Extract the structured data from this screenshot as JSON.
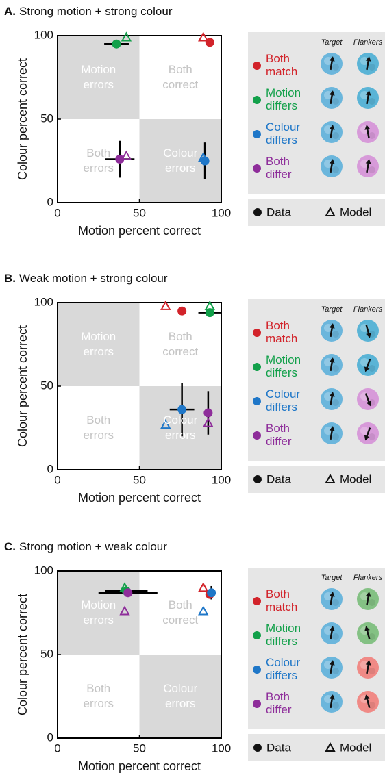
{
  "chart_data": [
    {
      "type": "scatter",
      "label": "A.",
      "title": "Strong motion + strong colour",
      "x_label": "Motion percent correct",
      "y_label": "Colour percent correct",
      "xlim": [
        0,
        100
      ],
      "ylim": [
        0,
        100
      ],
      "xticks": [
        0,
        50,
        100
      ],
      "yticks": [
        0,
        50,
        100
      ],
      "annotations": [
        "Motion errors",
        "Both correct",
        "Both errors",
        "Colour errors"
      ],
      "legend_headers": [
        "Target",
        "Flankers"
      ],
      "marker_legend": [
        "Data",
        "Model"
      ],
      "series": [
        {
          "name": "Both match",
          "color": "#d2232a",
          "x": 93,
          "y": 96,
          "x_err": null,
          "y_err": null,
          "model_x": 89,
          "model_y": 99
        },
        {
          "name": "Motion differs",
          "color": "#12a04a",
          "x": 36,
          "y": 95,
          "x_err": 7.5,
          "y_err": null,
          "model_x": 42,
          "model_y": 99
        },
        {
          "name": "Colour differs",
          "color": "#1f77c8",
          "x": 90,
          "y": 25,
          "x_err": null,
          "y_err": 11,
          "model_x": 89,
          "model_y": 27
        },
        {
          "name": "Both differ",
          "color": "#8e2d9a",
          "x": 38,
          "y": 26,
          "x_err": 9,
          "y_err": 11,
          "model_x": 42,
          "model_y": 28
        }
      ]
    },
    {
      "type": "scatter",
      "label": "B.",
      "title": "Weak motion + strong colour",
      "x_label": "Motion percent correct",
      "y_label": "Colour percent correct",
      "xlim": [
        0,
        100
      ],
      "ylim": [
        0,
        100
      ],
      "xticks": [
        0,
        50,
        100
      ],
      "yticks": [
        0,
        50,
        100
      ],
      "annotations": [
        "Motion errors",
        "Both correct",
        "Both errors",
        "Colour errors"
      ],
      "legend_headers": [
        "Target",
        "Flankers"
      ],
      "marker_legend": [
        "Data",
        "Model"
      ],
      "series": [
        {
          "name": "Both match",
          "color": "#d2232a",
          "x": 76,
          "y": 95,
          "x_err": null,
          "y_err": null,
          "model_x": 66,
          "model_y": 98
        },
        {
          "name": "Motion differs",
          "color": "#12a04a",
          "x": 93,
          "y": 94,
          "x_err": 7,
          "y_err": null,
          "model_x": 93,
          "model_y": 98
        },
        {
          "name": "Colour differs",
          "color": "#1f77c8",
          "x": 76,
          "y": 36,
          "x_err": 7.5,
          "y_err": 16,
          "model_x": 66,
          "model_y": 27
        },
        {
          "name": "Both differ",
          "color": "#8e2d9a",
          "x": 92,
          "y": 34,
          "x_err": null,
          "y_err": 13,
          "model_x": 92,
          "model_y": 28
        }
      ]
    },
    {
      "type": "scatter",
      "label": "C.",
      "title": "Strong motion + weak colour",
      "x_label": "Motion percent correct",
      "y_label": "Colour percent correct",
      "xlim": [
        0,
        100
      ],
      "ylim": [
        0,
        100
      ],
      "xticks": [
        0,
        50,
        100
      ],
      "yticks": [
        0,
        50,
        100
      ],
      "annotations": [
        "Motion errors",
        "Both correct",
        "Both errors",
        "Colour errors"
      ],
      "legend_headers": [
        "Target",
        "Flankers"
      ],
      "marker_legend": [
        "Data",
        "Model"
      ],
      "series": [
        {
          "name": "Both match",
          "color": "#d2232a",
          "x": 93,
          "y": 86,
          "x_err": null,
          "y_err": null,
          "model_x": 89,
          "model_y": 90
        },
        {
          "name": "Motion differs",
          "color": "#12a04a",
          "x": 42,
          "y": 88,
          "x_err": 13,
          "y_err": null,
          "model_x": 41,
          "model_y": 90
        },
        {
          "name": "Colour differs",
          "color": "#1f77c8",
          "x": 94,
          "y": 87,
          "x_err": null,
          "y_err": 4,
          "model_x": 89,
          "model_y": 76
        },
        {
          "name": "Both differ",
          "color": "#8e2d9a",
          "x": 43,
          "y": 87,
          "x_err": 18,
          "y_err": null,
          "model_x": 41,
          "model_y": 76
        }
      ]
    }
  ]
}
